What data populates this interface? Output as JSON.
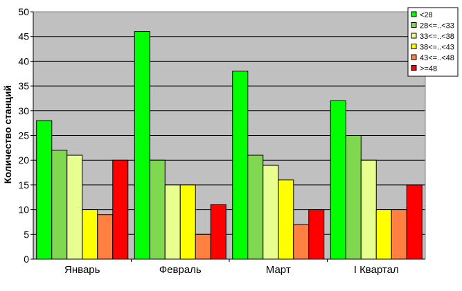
{
  "chart_data": {
    "type": "bar",
    "title": "",
    "xlabel": "",
    "ylabel": "Количество станций",
    "categories": [
      "Январь",
      "Февраль",
      "Март",
      "I Квартал"
    ],
    "ylim": [
      0,
      50
    ],
    "yticks": [
      0,
      5,
      10,
      15,
      20,
      25,
      30,
      35,
      40,
      45,
      50
    ],
    "grid": true,
    "plot_background": "#c0c0c0",
    "legend_position": "top-right",
    "series": [
      {
        "name": "<28",
        "color": "#00ff00",
        "values": [
          28,
          46,
          38,
          32
        ]
      },
      {
        "name": "28<=..<33",
        "color": "#80d850",
        "values": [
          22,
          20,
          21,
          25
        ]
      },
      {
        "name": "33<=..<38",
        "color": "#e8ff90",
        "values": [
          21,
          15,
          19,
          20
        ]
      },
      {
        "name": "38<=..<43",
        "color": "#ffff00",
        "values": [
          10,
          15,
          16,
          10
        ]
      },
      {
        "name": "43<=..<48",
        "color": "#ff8040",
        "values": [
          9,
          5,
          7,
          10
        ]
      },
      {
        "name": ">=48",
        "color": "#ff0000",
        "values": [
          20,
          11,
          10,
          15
        ]
      }
    ]
  }
}
